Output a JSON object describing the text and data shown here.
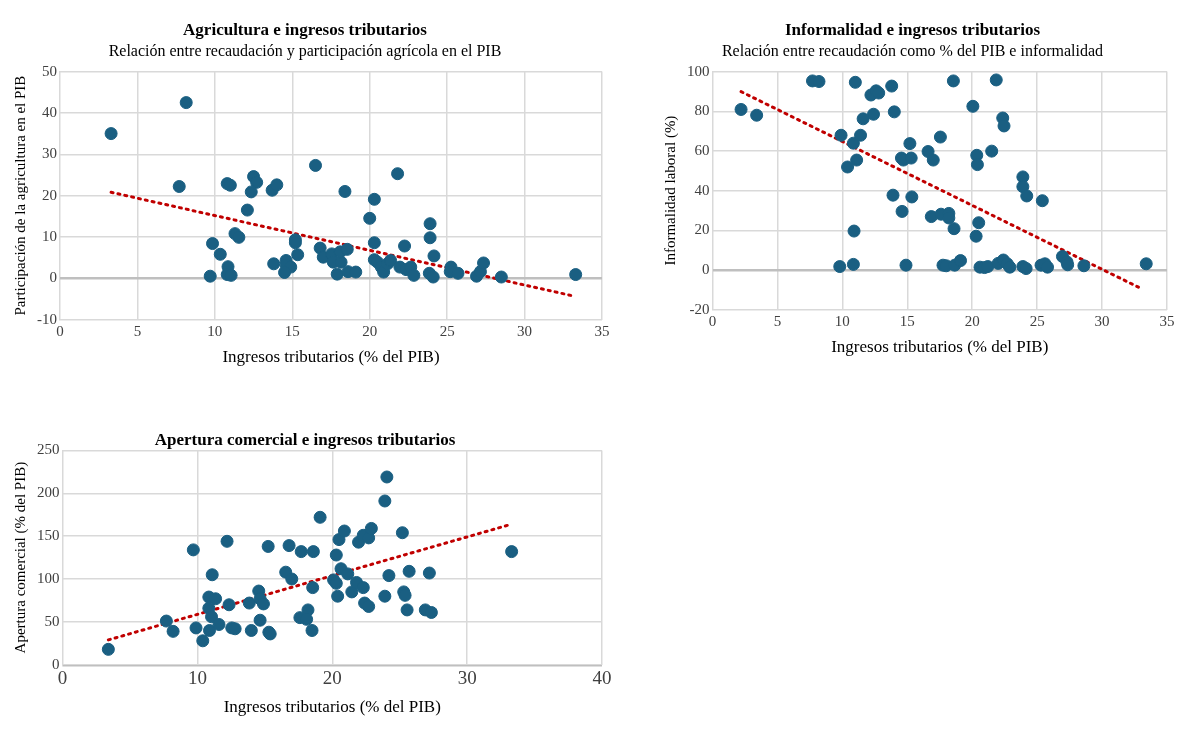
{
  "chart_data": [
    {
      "type": "scatter",
      "title": "Agricultura e ingresos tributarios",
      "subtitle": "Relación entre recaudación y participación agrícola en el PIB",
      "xlabel": "Ingresos tributarios (% del PIB)",
      "ylabel": "Participación de la agricultura en el PIB",
      "xlim": [
        0,
        35
      ],
      "xticks": [
        0,
        5,
        10,
        15,
        20,
        25,
        30,
        35
      ],
      "ylim": [
        -10,
        50
      ],
      "yticks": [
        -10,
        0,
        10,
        20,
        30,
        40,
        50
      ],
      "grid": true,
      "series": [
        {
          "type": "scatter",
          "marker": "circle",
          "color": "#1a5f82",
          "x": [
            3.3,
            8.15,
            7.7,
            10.8,
            11.0,
            12.5,
            12.7,
            12.35,
            12.1,
            13.7,
            14.0,
            16.5,
            21.8,
            18.4,
            20.3,
            20.0,
            23.9,
            23.9,
            11.3,
            11.55,
            9.85,
            10.35,
            10.85,
            9.7,
            10.8,
            11.05,
            13.8,
            14.6,
            14.6,
            14.9,
            14.5,
            15.2,
            15.2,
            15.35,
            16.8,
            17.0,
            17.55,
            17.65,
            18.15,
            18.1,
            18.55,
            17.9,
            18.6,
            19.1,
            20.3,
            20.3,
            20.5,
            20.75,
            20.9,
            21.15,
            21.35,
            22.25,
            21.95,
            22.35,
            22.65,
            22.85,
            23.85,
            24.1,
            24.15,
            25.25,
            25.2,
            25.7,
            26.9,
            27.15,
            27.35,
            28.5,
            33.3
          ],
          "values": [
            35,
            42.5,
            22.2,
            22.9,
            22.5,
            24.6,
            23.2,
            20.9,
            16.5,
            21.3,
            22.6,
            27.3,
            25.3,
            21.0,
            19.1,
            14.5,
            13.2,
            9.8,
            10.8,
            9.9,
            8.4,
            5.8,
            2.8,
            0.5,
            0.9,
            0.7,
            3.5,
            4.3,
            3.2,
            2.7,
            1.4,
            9.3,
            8.6,
            5.7,
            7.3,
            5.1,
            5.9,
            3.9,
            3.9,
            6.4,
            7.0,
            1.0,
            1.6,
            1.5,
            8.6,
            4.5,
            3.9,
            2.7,
            1.5,
            3.5,
            4.3,
            7.8,
            2.7,
            2.1,
            2.7,
            0.7,
            1.2,
            0.3,
            5.4,
            2.7,
            1.6,
            1.2,
            0.5,
            1.6,
            3.7,
            0.3,
            0.9
          ]
        },
        {
          "type": "line",
          "marker": "none",
          "line_style": "dotted",
          "color": "#c00000",
          "x": [
            3.3,
            33.05
          ],
          "values": [
            20.8,
            -4.2
          ]
        }
      ]
    },
    {
      "type": "scatter",
      "title": "Informalidad e ingresos tributarios",
      "subtitle": "Relación entre recaudación como % del PIB e informalidad",
      "xlabel": "Ingresos tributarios (% del PIB)",
      "ylabel": "Informalidad laboral (%)",
      "xlim": [
        0,
        35
      ],
      "xticks": [
        0,
        5,
        10,
        15,
        20,
        25,
        30,
        35
      ],
      "ylim": [
        -20,
        100
      ],
      "yticks": [
        -20,
        0,
        20,
        40,
        60,
        80,
        100
      ],
      "grid": true,
      "series": [
        {
          "type": "scatter",
          "marker": "circle",
          "color": "#1a5f82",
          "x": [
            2.2,
            3.4,
            7.7,
            8.2,
            11.0,
            12.2,
            12.6,
            12.8,
            13.8,
            14.0,
            12.4,
            11.6,
            9.9,
            10.85,
            11.4,
            10.4,
            11.1,
            14.55,
            14.7,
            15.3,
            15.2,
            16.6,
            17.0,
            17.55,
            18.55,
            21.85,
            20.05,
            22.35,
            22.45,
            21.5,
            20.35,
            20.4,
            23.9,
            23.9,
            24.2,
            25.4,
            13.9,
            15.35,
            14.6,
            16.85,
            17.6,
            18.2,
            18.2,
            18.6,
            20.5,
            20.3,
            10.9,
            9.8,
            10.85,
            14.9,
            17.75,
            18.0,
            18.65,
            19.1,
            20.6,
            20.95,
            21.2,
            22.0,
            22.4,
            22.7,
            22.9,
            23.9,
            24.15,
            25.3,
            25.6,
            25.8,
            26.95,
            27.3,
            27.35,
            28.6,
            33.4
          ],
          "values": [
            80.9,
            78,
            95.3,
            95.0,
            94.6,
            88.2,
            90.3,
            89.2,
            92.7,
            79.7,
            78.5,
            76.2,
            67.9,
            63.9,
            67.9,
            51.9,
            55.4,
            56.4,
            55.4,
            56.4,
            63.7,
            59.7,
            55.4,
            67.0,
            95.3,
            95.8,
            82.5,
            76.6,
            72.6,
            59.9,
            57.8,
            53.1,
            46.9,
            42.0,
            37.3,
            34.9,
            37.7,
            36.8,
            29.5,
            26.9,
            28.1,
            28.5,
            26.2,
            20.8,
            23.8,
            17.0,
            19.6,
            1.7,
            2.8,
            2.4,
            2.4,
            2.1,
            2.4,
            4.7,
            1.4,
            1.2,
            1.7,
            3.3,
            5.0,
            3.1,
            1.4,
            1.7,
            0.7,
            2.4,
            3.1,
            1.4,
            6.8,
            4.0,
            2.6,
            2.1,
            3.1
          ]
        },
        {
          "type": "line",
          "marker": "none",
          "line_style": "dotted",
          "color": "#c00000",
          "x": [
            2.2,
            32.8
          ],
          "values": [
            89.9,
            -8.7
          ]
        }
      ]
    },
    {
      "type": "scatter",
      "title": "Apertura comercial e ingresos tributarios",
      "xlabel": "Ingresos tributarios (% del PIB)",
      "ylabel": "Apertura comercial (% del PIB)",
      "xlim": [
        0,
        40
      ],
      "xticks": [
        0,
        10,
        20,
        30,
        40
      ],
      "ylim": [
        0,
        250
      ],
      "yticks": [
        0,
        50,
        100,
        150,
        200,
        250
      ],
      "grid": true,
      "series": [
        {
          "type": "scatter",
          "marker": "circle",
          "color": "#1a5f82",
          "x": [
            3.4,
            7.7,
            8.2,
            9.7,
            9.9,
            10.4,
            10.9,
            11.1,
            10.85,
            11.35,
            10.85,
            11.05,
            11.6,
            12.2,
            12.35,
            12.55,
            12.8,
            13.85,
            14.0,
            14.55,
            14.65,
            14.9,
            14.65,
            15.25,
            15.3,
            15.4,
            16.55,
            17.0,
            16.8,
            17.7,
            18.6,
            18.55,
            17.6,
            18.2,
            18.1,
            18.5,
            19.1,
            20.3,
            20.5,
            20.9,
            20.1,
            20.3,
            20.65,
            21.15,
            20.4,
            21.45,
            21.8,
            22.3,
            21.95,
            22.3,
            22.7,
            22.9,
            22.4,
            22.7,
            23.9,
            24.05,
            24.2,
            23.9,
            25.2,
            25.3,
            25.4,
            25.55,
            25.7,
            26.9,
            27.35,
            27.2,
            33.3
          ],
          "values": [
            18,
            51,
            39,
            134,
            43,
            28,
            40,
            105,
            79,
            77,
            66,
            56,
            47,
            144,
            70,
            43,
            42,
            72,
            40,
            86,
            77,
            71,
            52,
            138,
            38,
            36,
            108,
            100,
            139,
            132,
            132,
            90,
            55,
            64,
            53,
            40,
            172,
            128,
            146,
            156,
            99,
            95,
            112,
            106,
            80,
            85,
            96,
            90,
            143,
            151,
            148,
            159,
            72,
            68,
            191,
            219,
            104,
            80,
            154,
            85,
            81,
            64,
            109,
            64,
            61,
            107,
            132
          ]
        },
        {
          "type": "line",
          "marker": "none",
          "line_style": "dotted",
          "color": "#c00000",
          "x": [
            3.4,
            33.3
          ],
          "values": [
            29,
            164
          ]
        }
      ]
    }
  ]
}
